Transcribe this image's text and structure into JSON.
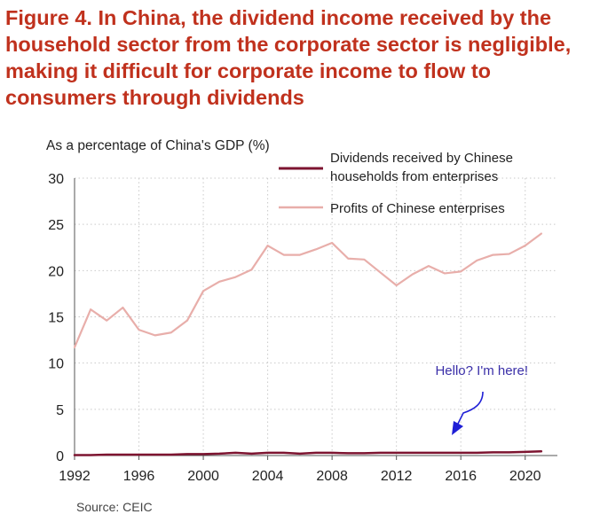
{
  "title": "Figure 4. In China, the dividend income received by the household sector from the corporate sector is negligible, making it difficult for corporate income to flow to consumers through dividends",
  "source": "Source: CEIC",
  "colors": {
    "title": "#c0311d",
    "dividends": "#7d1430",
    "profits": "#e8aeaa",
    "annotation": "#3a2fa8",
    "arrow": "#1f1fd6"
  },
  "chart_data": {
    "type": "line",
    "ylabel": "As a percentage of China's GDP (%)",
    "xlabel": "",
    "xlim": [
      1992,
      2022
    ],
    "ylim": [
      0,
      30
    ],
    "xticks": [
      "1992",
      "1996",
      "2000",
      "2004",
      "2008",
      "2012",
      "2016",
      "2020"
    ],
    "yticks": [
      "0",
      "5",
      "10",
      "15",
      "20",
      "25",
      "30"
    ],
    "grid": true,
    "legend_position": "top-right",
    "x": [
      1992,
      1993,
      1994,
      1995,
      1996,
      1997,
      1998,
      1999,
      2000,
      2001,
      2002,
      2003,
      2004,
      2005,
      2006,
      2007,
      2008,
      2009,
      2010,
      2011,
      2012,
      2013,
      2014,
      2015,
      2016,
      2017,
      2018,
      2019,
      2020,
      2021
    ],
    "series": [
      {
        "name": "Dividends received by Chinese households from enterprises",
        "values": [
          0.05,
          0.05,
          0.1,
          0.1,
          0.1,
          0.1,
          0.1,
          0.15,
          0.15,
          0.2,
          0.3,
          0.2,
          0.3,
          0.3,
          0.2,
          0.3,
          0.3,
          0.25,
          0.25,
          0.3,
          0.3,
          0.3,
          0.3,
          0.3,
          0.3,
          0.3,
          0.35,
          0.35,
          0.4,
          0.45
        ]
      },
      {
        "name": "Profits of Chinese enterprises",
        "values": [
          11.7,
          15.8,
          14.6,
          16.0,
          13.6,
          13.0,
          13.3,
          14.6,
          17.8,
          18.8,
          19.3,
          20.1,
          22.7,
          21.7,
          21.7,
          22.3,
          23.0,
          21.3,
          21.2,
          19.8,
          18.4,
          19.6,
          20.5,
          19.7,
          19.9,
          21.1,
          21.7,
          21.8,
          22.7,
          24.0
        ]
      }
    ],
    "annotations": [
      {
        "text": "Hello? I'm here!",
        "x": 2017.3,
        "y": 8.7
      }
    ]
  }
}
